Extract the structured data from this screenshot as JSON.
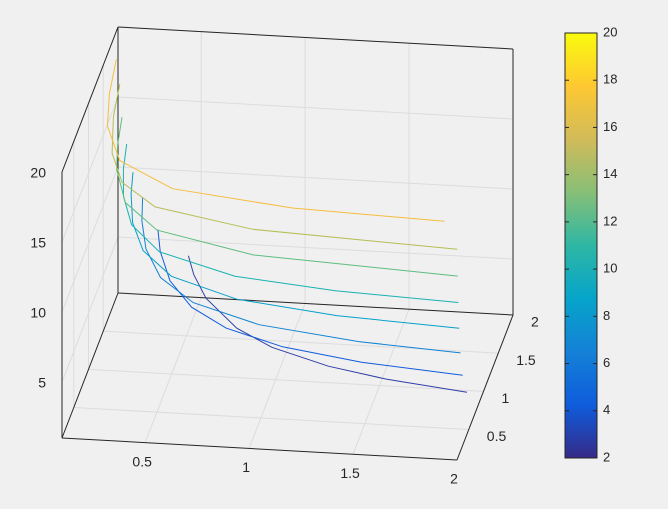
{
  "chart_data": {
    "type": "contour3",
    "xlim": [
      0.1,
      2
    ],
    "ylim": [
      0.1,
      2
    ],
    "zlim": [
      1,
      20
    ],
    "xticks": [
      0.5,
      1,
      1.5,
      2
    ],
    "yticks": [
      0.5,
      1,
      1.5,
      2
    ],
    "zticks": [
      5,
      10,
      15,
      20
    ],
    "grid": true,
    "series": [
      {
        "level": 4,
        "color": "#2f3fa8",
        "x": [
          0.44,
          0.5,
          0.6,
          0.8,
          1.0,
          1.3,
          1.6,
          2
        ],
        "y": [
          1.99,
          1.75,
          1.458,
          1.094,
          0.875,
          0.673,
          0.547,
          0.438
        ]
      },
      {
        "level": 6,
        "color": "#0f5cdd",
        "x": [
          0.3,
          0.35,
          0.45,
          0.6,
          0.8,
          1.1,
          1.5,
          2
        ],
        "y": [
          1.944,
          1.667,
          1.296,
          0.972,
          0.729,
          0.53,
          0.389,
          0.292
        ]
      },
      {
        "level": 8,
        "color": "#1282d4",
        "x": [
          0.22,
          0.26,
          0.33,
          0.45,
          0.65,
          1.0,
          1.5,
          2
        ],
        "y": [
          1.989,
          1.683,
          1.326,
          0.972,
          0.673,
          0.4375,
          0.292,
          0.219
        ]
      },
      {
        "level": 10,
        "color": "#06a0c8",
        "x": [
          0.18,
          0.21,
          0.27,
          0.37,
          0.55,
          0.9,
          1.4,
          2
        ],
        "y": [
          1.944,
          1.667,
          1.296,
          0.946,
          0.636,
          0.389,
          0.25,
          0.175
        ]
      },
      {
        "level": 12,
        "color": "#18b2b0",
        "x": [
          0.15,
          0.18,
          0.23,
          0.32,
          0.5,
          0.9,
          1.4,
          2
        ],
        "y": [
          1.944,
          1.62,
          1.268,
          0.911,
          0.583,
          0.324,
          0.208,
          0.146
        ]
      },
      {
        "level": 14,
        "color": "#5dbd7d",
        "x": [
          0.13,
          0.16,
          0.2,
          0.3,
          0.5,
          1.0,
          2
        ],
        "y": [
          1.923,
          1.5625,
          1.25,
          0.833,
          0.5,
          0.25,
          0.125
        ]
      },
      {
        "level": 16,
        "color": "#b6bd55",
        "x": [
          0.11,
          0.14,
          0.2,
          0.3,
          0.5,
          1.0,
          2
        ],
        "y": [
          1.989,
          1.5625,
          1.094,
          0.729,
          0.4375,
          0.219,
          0.109
        ]
      },
      {
        "level": 18,
        "color": "#f5bd3e",
        "x": [
          0.1,
          0.13,
          0.18,
          0.3,
          0.6,
          1.2,
          1.94
        ],
        "y": [
          1.944,
          1.496,
          1.08,
          0.648,
          0.324,
          0.162,
          0.1
        ]
      }
    ],
    "colorbar": {
      "clim": [
        2,
        20
      ],
      "ticks": [
        2,
        4,
        6,
        8,
        10,
        12,
        14,
        16,
        18,
        20
      ],
      "colormap": [
        "#352a87",
        "#0f5cdd",
        "#1481d6",
        "#06a4ca",
        "#2eb7a4",
        "#87bf77",
        "#d1bb59",
        "#fec832",
        "#f9fb0e"
      ]
    }
  }
}
